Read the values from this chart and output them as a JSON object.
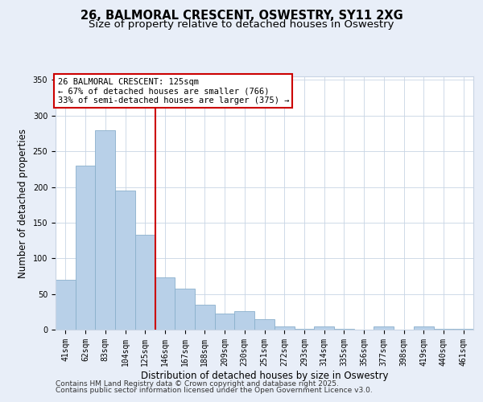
{
  "title1": "26, BALMORAL CRESCENT, OSWESTRY, SY11 2XG",
  "title2": "Size of property relative to detached houses in Oswestry",
  "xlabel": "Distribution of detached houses by size in Oswestry",
  "ylabel": "Number of detached properties",
  "bar_labels": [
    "41sqm",
    "62sqm",
    "83sqm",
    "104sqm",
    "125sqm",
    "146sqm",
    "167sqm",
    "188sqm",
    "209sqm",
    "230sqm",
    "251sqm",
    "272sqm",
    "293sqm",
    "314sqm",
    "335sqm",
    "356sqm",
    "377sqm",
    "398sqm",
    "419sqm",
    "440sqm",
    "461sqm"
  ],
  "bar_values": [
    70,
    230,
    280,
    195,
    133,
    73,
    58,
    35,
    22,
    26,
    15,
    4,
    1,
    4,
    1,
    0,
    4,
    0,
    5,
    1,
    1
  ],
  "bar_color": "#b8d0e8",
  "bar_edge_color": "#8ab0cc",
  "vline_x": 4,
  "vline_color": "#cc0000",
  "annotation_line1": "26 BALMORAL CRESCENT: 125sqm",
  "annotation_line2": "← 67% of detached houses are smaller (766)",
  "annotation_line3": "33% of semi-detached houses are larger (375) →",
  "annotation_box_facecolor": "#ffffff",
  "annotation_box_edgecolor": "#cc0000",
  "ylim": [
    0,
    355
  ],
  "yticks": [
    0,
    50,
    100,
    150,
    200,
    250,
    300,
    350
  ],
  "footer1": "Contains HM Land Registry data © Crown copyright and database right 2025.",
  "footer2": "Contains public sector information licensed under the Open Government Licence v3.0.",
  "bg_color": "#e8eef8",
  "plot_bg_color": "#ffffff",
  "title1_fontsize": 10.5,
  "title2_fontsize": 9.5,
  "tick_fontsize": 7,
  "label_fontsize": 8.5,
  "annot_fontsize": 7.5,
  "footer_fontsize": 6.5
}
